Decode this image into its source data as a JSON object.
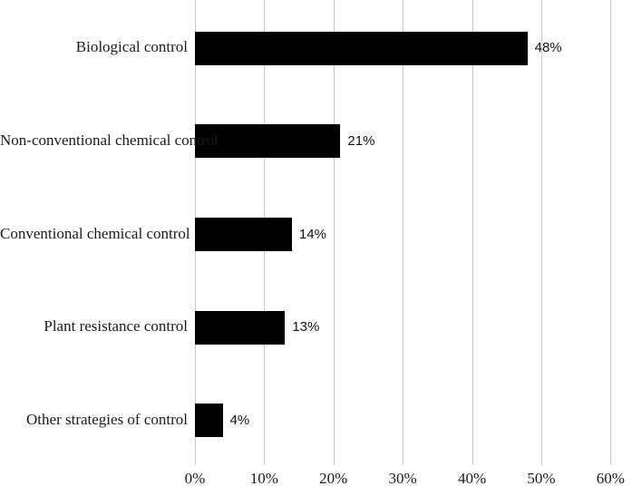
{
  "chart_data": {
    "type": "bar",
    "orientation": "horizontal",
    "title": "",
    "xlabel": "",
    "ylabel": "",
    "categories": [
      "Biological control",
      "Non-conventional chemical control",
      "Conventional chemical control",
      "Plant resistance control",
      "Other strategies of control"
    ],
    "values": [
      48,
      21,
      14,
      13,
      4
    ],
    "value_labels": [
      "48%",
      "21%",
      "14%",
      "13%",
      "4%"
    ],
    "x_tick_labels": [
      "0%",
      "10%",
      "20%",
      "30%",
      "40%",
      "50%",
      "60%"
    ],
    "x_tick_values": [
      0,
      10,
      20,
      30,
      40,
      50,
      60
    ],
    "xlim": [
      0,
      60
    ],
    "grid": "vertical-only",
    "legend": "none",
    "bar_color": "#000000",
    "gridline_color": "#c9c9c9",
    "background_color": "#ffffff",
    "text_color": "#1a1a1a"
  }
}
